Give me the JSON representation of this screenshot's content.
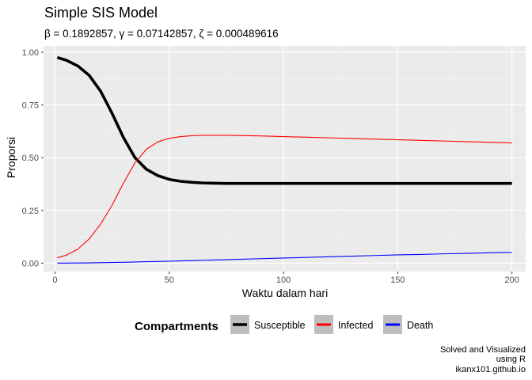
{
  "chart_data": {
    "type": "line",
    "title": "Simple SIS Model",
    "subtitle": "β = 0.1892857,  γ = 0.07142857,  ζ = 0.000489616",
    "xlabel": "Waktu dalam hari",
    "ylabel": "Proporsi",
    "xlim": [
      -5,
      206
    ],
    "ylim": [
      -0.04,
      1.03
    ],
    "x_ticks": [
      0,
      50,
      100,
      150,
      200
    ],
    "x_tick_labels": [
      "0",
      "50",
      "100",
      "150",
      "200"
    ],
    "y_ticks": [
      0,
      0.25,
      0.5,
      0.75,
      1
    ],
    "y_tick_labels": [
      "0.00",
      "0.25",
      "0.50",
      "0.75",
      "1.00"
    ],
    "grid": true,
    "legend_title": "Compartments",
    "legend_position": "bottom",
    "x": [
      1,
      5,
      10,
      15,
      20,
      25,
      30,
      35,
      40,
      45,
      50,
      55,
      60,
      65,
      70,
      75,
      80,
      90,
      100,
      110,
      120,
      130,
      140,
      150,
      160,
      170,
      180,
      190,
      200
    ],
    "series": [
      {
        "name": "Susceptible",
        "color": "#000000",
        "width": 3.6,
        "values": [
          0.975,
          0.962,
          0.935,
          0.89,
          0.815,
          0.71,
          0.595,
          0.5,
          0.445,
          0.415,
          0.397,
          0.388,
          0.383,
          0.38,
          0.379,
          0.378,
          0.378,
          0.378,
          0.378,
          0.378,
          0.378,
          0.378,
          0.378,
          0.378,
          0.378,
          0.378,
          0.378,
          0.378,
          0.378
        ]
      },
      {
        "name": "Infected",
        "color": "#ff0000",
        "width": 1.1,
        "values": [
          0.025,
          0.038,
          0.066,
          0.115,
          0.185,
          0.275,
          0.38,
          0.475,
          0.54,
          0.575,
          0.592,
          0.6,
          0.604,
          0.606,
          0.606,
          0.606,
          0.605,
          0.603,
          0.6,
          0.597,
          0.594,
          0.591,
          0.588,
          0.585,
          0.582,
          0.579,
          0.576,
          0.573,
          0.57
        ]
      },
      {
        "name": "Death",
        "color": "#0000ff",
        "width": 1.1,
        "values": [
          0.0,
          0.0002,
          0.0006,
          0.0012,
          0.002,
          0.003,
          0.004,
          0.0052,
          0.0065,
          0.0078,
          0.009,
          0.0105,
          0.012,
          0.0135,
          0.015,
          0.016,
          0.018,
          0.021,
          0.024,
          0.027,
          0.03,
          0.033,
          0.036,
          0.039,
          0.041,
          0.044,
          0.046,
          0.049,
          0.051
        ]
      }
    ],
    "caption_lines": [
      "Solved and Visualized",
      "using R",
      "ikanx101.github.io"
    ]
  }
}
